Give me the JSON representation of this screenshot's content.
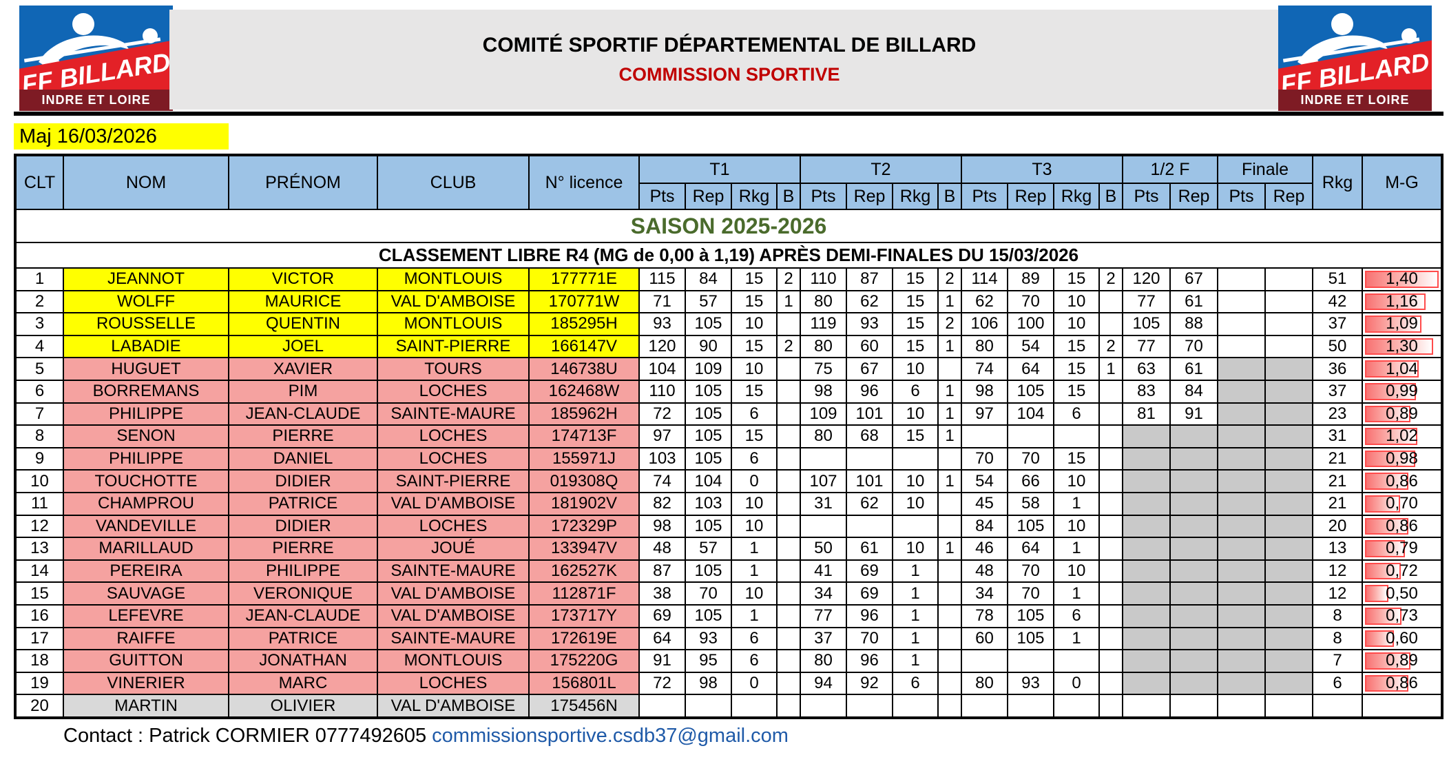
{
  "header": {
    "title": "COMITÉ SPORTIF DÉPARTEMENTAL DE BILLARD",
    "subtitle": "COMMISSION SPORTIVE"
  },
  "logo": {
    "text": "FF BILLARD",
    "region": "INDRE ET LOIRE"
  },
  "maj": "Maj 16/03/2026",
  "table": {
    "season_title": "SAISON 2025-2026",
    "classement_title": "CLASSEMENT LIBRE R4 (MG de 0,00 à 1,19) APRÈS DEMI-FINALES DU 15/03/2026",
    "columns": {
      "clt": "CLT",
      "nom": "NOM",
      "prenom": "PRÉNOM",
      "club": "CLUB",
      "licence": "N° licence",
      "t1": "T1",
      "t2": "T2",
      "t3": "T3",
      "demi": "1/2 F",
      "finale": "Finale",
      "rkg": "Rkg",
      "mg": "M-G",
      "sub": [
        "Pts",
        "Rep",
        "Rkg",
        "B"
      ],
      "sub2": [
        "Pts",
        "Rep"
      ]
    },
    "rows": [
      {
        "clt": "1",
        "nom": "JEANNOT",
        "prenom": "VICTOR",
        "club": "MONTLOUIS",
        "licence": "177771E",
        "hl": "yellow",
        "t1": [
          "115",
          "84",
          "15",
          "2"
        ],
        "t2": [
          "110",
          "87",
          "15",
          "2"
        ],
        "t3": [
          "114",
          "89",
          "15",
          "2"
        ],
        "demi": [
          "120",
          "67"
        ],
        "demi_gray": false,
        "finale": [
          "",
          ""
        ],
        "finale_gray": false,
        "rkg": "51",
        "mg": "1,40",
        "mg_pct": 100
      },
      {
        "clt": "2",
        "nom": "WOLFF",
        "prenom": "MAURICE",
        "club": "VAL D'AMBOISE",
        "licence": "170771W",
        "hl": "yellow",
        "t1": [
          "71",
          "57",
          "15",
          "1"
        ],
        "t2": [
          "80",
          "62",
          "15",
          "1"
        ],
        "t3": [
          "62",
          "70",
          "10",
          ""
        ],
        "demi": [
          "77",
          "61"
        ],
        "demi_gray": false,
        "finale": [
          "",
          ""
        ],
        "finale_gray": false,
        "rkg": "42",
        "mg": "1,16",
        "mg_pct": 82.9
      },
      {
        "clt": "3",
        "nom": "ROUSSELLE",
        "prenom": "QUENTIN",
        "club": "MONTLOUIS",
        "licence": "185295H",
        "hl": "yellow",
        "t1": [
          "93",
          "105",
          "10",
          ""
        ],
        "t2": [
          "119",
          "93",
          "15",
          "2"
        ],
        "t3": [
          "106",
          "100",
          "10",
          ""
        ],
        "demi": [
          "105",
          "88"
        ],
        "demi_gray": false,
        "finale": [
          "",
          ""
        ],
        "finale_gray": false,
        "rkg": "37",
        "mg": "1,09",
        "mg_pct": 77.9
      },
      {
        "clt": "4",
        "nom": "LABADIE",
        "prenom": "JOEL",
        "club": "SAINT-PIERRE",
        "licence": "166147V",
        "hl": "yellow",
        "t1": [
          "120",
          "90",
          "15",
          "2"
        ],
        "t2": [
          "80",
          "60",
          "15",
          "1"
        ],
        "t3": [
          "80",
          "54",
          "15",
          "2"
        ],
        "demi": [
          "77",
          "70"
        ],
        "demi_gray": false,
        "finale": [
          "",
          ""
        ],
        "finale_gray": false,
        "rkg": "50",
        "mg": "1,30",
        "mg_pct": 92.9
      },
      {
        "clt": "5",
        "nom": "HUGUET",
        "prenom": "XAVIER",
        "club": "TOURS",
        "licence": "146738U",
        "hl": "pink",
        "t1": [
          "104",
          "109",
          "10",
          ""
        ],
        "t2": [
          "75",
          "67",
          "10",
          ""
        ],
        "t3": [
          "74",
          "64",
          "15",
          "1"
        ],
        "demi": [
          "63",
          "61"
        ],
        "demi_gray": false,
        "finale": [
          "",
          ""
        ],
        "finale_gray": true,
        "rkg": "36",
        "mg": "1,04",
        "mg_pct": 74.3
      },
      {
        "clt": "6",
        "nom": "BORREMANS",
        "prenom": "PIM",
        "club": "LOCHES",
        "licence": "162468W",
        "hl": "pink",
        "t1": [
          "110",
          "105",
          "15",
          ""
        ],
        "t2": [
          "98",
          "96",
          "6",
          "1"
        ],
        "t3": [
          "98",
          "105",
          "15",
          ""
        ],
        "demi": [
          "83",
          "84"
        ],
        "demi_gray": false,
        "finale": [
          "",
          ""
        ],
        "finale_gray": true,
        "rkg": "37",
        "mg": "0,99",
        "mg_pct": 70.7
      },
      {
        "clt": "7",
        "nom": "PHILIPPE",
        "prenom": "JEAN-CLAUDE",
        "club": "SAINTE-MAURE",
        "licence": "185962H",
        "hl": "pink",
        "t1": [
          "72",
          "105",
          "6",
          ""
        ],
        "t2": [
          "109",
          "101",
          "10",
          "1"
        ],
        "t3": [
          "97",
          "104",
          "6",
          ""
        ],
        "demi": [
          "81",
          "91"
        ],
        "demi_gray": false,
        "finale": [
          "",
          ""
        ],
        "finale_gray": true,
        "rkg": "23",
        "mg": "0,89",
        "mg_pct": 63.6
      },
      {
        "clt": "8",
        "nom": "SENON",
        "prenom": "PIERRE",
        "club": "LOCHES",
        "licence": "174713F",
        "hl": "pink",
        "t1": [
          "97",
          "105",
          "15",
          ""
        ],
        "t2": [
          "80",
          "68",
          "15",
          "1"
        ],
        "t3": [
          "",
          "",
          "",
          ""
        ],
        "demi": [
          "",
          ""
        ],
        "demi_gray": true,
        "finale": [
          "",
          ""
        ],
        "finale_gray": true,
        "rkg": "31",
        "mg": "1,02",
        "mg_pct": 72.9
      },
      {
        "clt": "9",
        "nom": "PHILIPPE",
        "prenom": "DANIEL",
        "club": "LOCHES",
        "licence": "155971J",
        "hl": "pink",
        "t1": [
          "103",
          "105",
          "6",
          ""
        ],
        "t2": [
          "",
          "",
          "",
          ""
        ],
        "t3": [
          "70",
          "70",
          "15",
          ""
        ],
        "demi": [
          "",
          ""
        ],
        "demi_gray": true,
        "finale": [
          "",
          ""
        ],
        "finale_gray": true,
        "rkg": "21",
        "mg": "0,98",
        "mg_pct": 70
      },
      {
        "clt": "10",
        "nom": "TOUCHOTTE",
        "prenom": "DIDIER",
        "club": "SAINT-PIERRE",
        "licence": "019308Q",
        "hl": "pink",
        "t1": [
          "74",
          "104",
          "0",
          ""
        ],
        "t2": [
          "107",
          "101",
          "10",
          "1"
        ],
        "t3": [
          "54",
          "66",
          "10",
          ""
        ],
        "demi": [
          "",
          ""
        ],
        "demi_gray": true,
        "finale": [
          "",
          ""
        ],
        "finale_gray": true,
        "rkg": "21",
        "mg": "0,86",
        "mg_pct": 61.4
      },
      {
        "clt": "11",
        "nom": "CHAMPROU",
        "prenom": "PATRICE",
        "club": "VAL D'AMBOISE",
        "licence": "181902V",
        "hl": "pink",
        "t1": [
          "82",
          "103",
          "10",
          ""
        ],
        "t2": [
          "31",
          "62",
          "10",
          ""
        ],
        "t3": [
          "45",
          "58",
          "1",
          ""
        ],
        "demi": [
          "",
          ""
        ],
        "demi_gray": true,
        "finale": [
          "",
          ""
        ],
        "finale_gray": true,
        "rkg": "21",
        "mg": "0,70",
        "mg_pct": 50
      },
      {
        "clt": "12",
        "nom": "VANDEVILLE",
        "prenom": "DIDIER",
        "club": "LOCHES",
        "licence": "172329P",
        "hl": "pink",
        "t1": [
          "98",
          "105",
          "10",
          ""
        ],
        "t2": [
          "",
          "",
          "",
          ""
        ],
        "t3": [
          "84",
          "105",
          "10",
          ""
        ],
        "demi": [
          "",
          ""
        ],
        "demi_gray": true,
        "finale": [
          "",
          ""
        ],
        "finale_gray": true,
        "rkg": "20",
        "mg": "0,86",
        "mg_pct": 61.4
      },
      {
        "clt": "13",
        "nom": "MARILLAUD",
        "prenom": "PIERRE",
        "club": "JOUÉ",
        "licence": "133947V",
        "hl": "pink",
        "t1": [
          "48",
          "57",
          "1",
          ""
        ],
        "t2": [
          "50",
          "61",
          "10",
          "1"
        ],
        "t3": [
          "46",
          "64",
          "1",
          ""
        ],
        "demi": [
          "",
          ""
        ],
        "demi_gray": true,
        "finale": [
          "",
          ""
        ],
        "finale_gray": true,
        "rkg": "13",
        "mg": "0,79",
        "mg_pct": 56.4
      },
      {
        "clt": "14",
        "nom": "PEREIRA",
        "prenom": "PHILIPPE",
        "club": "SAINTE-MAURE",
        "licence": "162527K",
        "hl": "pink",
        "t1": [
          "87",
          "105",
          "1",
          ""
        ],
        "t2": [
          "41",
          "69",
          "1",
          ""
        ],
        "t3": [
          "48",
          "70",
          "10",
          ""
        ],
        "demi": [
          "",
          ""
        ],
        "demi_gray": true,
        "finale": [
          "",
          ""
        ],
        "finale_gray": true,
        "rkg": "12",
        "mg": "0,72",
        "mg_pct": 51.4
      },
      {
        "clt": "15",
        "nom": "SAUVAGE",
        "prenom": "VERONIQUE",
        "club": "VAL D'AMBOISE",
        "licence": "112871F",
        "hl": "pink",
        "t1": [
          "38",
          "70",
          "10",
          ""
        ],
        "t2": [
          "34",
          "69",
          "1",
          ""
        ],
        "t3": [
          "34",
          "70",
          "1",
          ""
        ],
        "demi": [
          "",
          ""
        ],
        "demi_gray": true,
        "finale": [
          "",
          ""
        ],
        "finale_gray": true,
        "rkg": "12",
        "mg": "0,50",
        "mg_pct": 35.7
      },
      {
        "clt": "16",
        "nom": "LEFEVRE",
        "prenom": "JEAN-CLAUDE",
        "club": "VAL D'AMBOISE",
        "licence": "173717Y",
        "hl": "pink",
        "t1": [
          "69",
          "105",
          "1",
          ""
        ],
        "t2": [
          "77",
          "96",
          "1",
          ""
        ],
        "t3": [
          "78",
          "105",
          "6",
          ""
        ],
        "demi": [
          "",
          ""
        ],
        "demi_gray": true,
        "finale": [
          "",
          ""
        ],
        "finale_gray": true,
        "rkg": "8",
        "mg": "0,73",
        "mg_pct": 52.1
      },
      {
        "clt": "17",
        "nom": "RAIFFE",
        "prenom": "PATRICE",
        "club": "SAINTE-MAURE",
        "licence": "172619E",
        "hl": "pink",
        "t1": [
          "64",
          "93",
          "6",
          ""
        ],
        "t2": [
          "37",
          "70",
          "1",
          ""
        ],
        "t3": [
          "60",
          "105",
          "1",
          ""
        ],
        "demi": [
          "",
          ""
        ],
        "demi_gray": true,
        "finale": [
          "",
          ""
        ],
        "finale_gray": true,
        "rkg": "8",
        "mg": "0,60",
        "mg_pct": 42.9
      },
      {
        "clt": "18",
        "nom": "GUITTON",
        "prenom": "JONATHAN",
        "club": "MONTLOUIS",
        "licence": "175220G",
        "hl": "pink",
        "t1": [
          "91",
          "95",
          "6",
          ""
        ],
        "t2": [
          "80",
          "96",
          "1",
          ""
        ],
        "t3": [
          "",
          "",
          "",
          ""
        ],
        "demi": [
          "",
          ""
        ],
        "demi_gray": true,
        "finale": [
          "",
          ""
        ],
        "finale_gray": true,
        "rkg": "7",
        "mg": "0,89",
        "mg_pct": 63.6
      },
      {
        "clt": "19",
        "nom": "VINERIER",
        "prenom": "MARC",
        "club": "LOCHES",
        "licence": "156801L",
        "hl": "pink",
        "t1": [
          "72",
          "98",
          "0",
          ""
        ],
        "t2": [
          "94",
          "92",
          "6",
          ""
        ],
        "t3": [
          "80",
          "93",
          "0",
          ""
        ],
        "demi": [
          "",
          ""
        ],
        "demi_gray": true,
        "finale": [
          "",
          ""
        ],
        "finale_gray": true,
        "rkg": "6",
        "mg": "0,86",
        "mg_pct": 61.4
      },
      {
        "clt": "20",
        "nom": "MARTIN",
        "prenom": "OLIVIER",
        "club": "VAL D'AMBOISE",
        "licence": "175456N",
        "hl": "gray",
        "t1": [
          "",
          "",
          "",
          ""
        ],
        "t2": [
          "",
          "",
          "",
          ""
        ],
        "t3": [
          "",
          "",
          "",
          ""
        ],
        "demi": [
          "",
          ""
        ],
        "demi_gray": false,
        "finale": [
          "",
          ""
        ],
        "finale_gray": false,
        "rkg": "",
        "mg": "",
        "mg_pct": 0
      }
    ]
  },
  "footer": {
    "contact": "Contact : Patrick CORMIER 0777492605",
    "email": "commissionsportive.csdb37@gmail.com"
  },
  "colors": {
    "header_blue": "#9DC3E6",
    "yellow": "#FFFF00",
    "pink": "#F5A2A0",
    "gray_cell": "#C9C9C9",
    "row20_gray": "#D9D9D9",
    "banner_gray": "#E7E6E6",
    "season_green": "#4A6B2C",
    "commission_red": "#C00000",
    "databar_red": "#FF4B4B",
    "link_blue": "#1F5AA8",
    "logo_blue": "#1066B5",
    "logo_red": "#E32127",
    "logo_maroon": "#7E1B24"
  }
}
